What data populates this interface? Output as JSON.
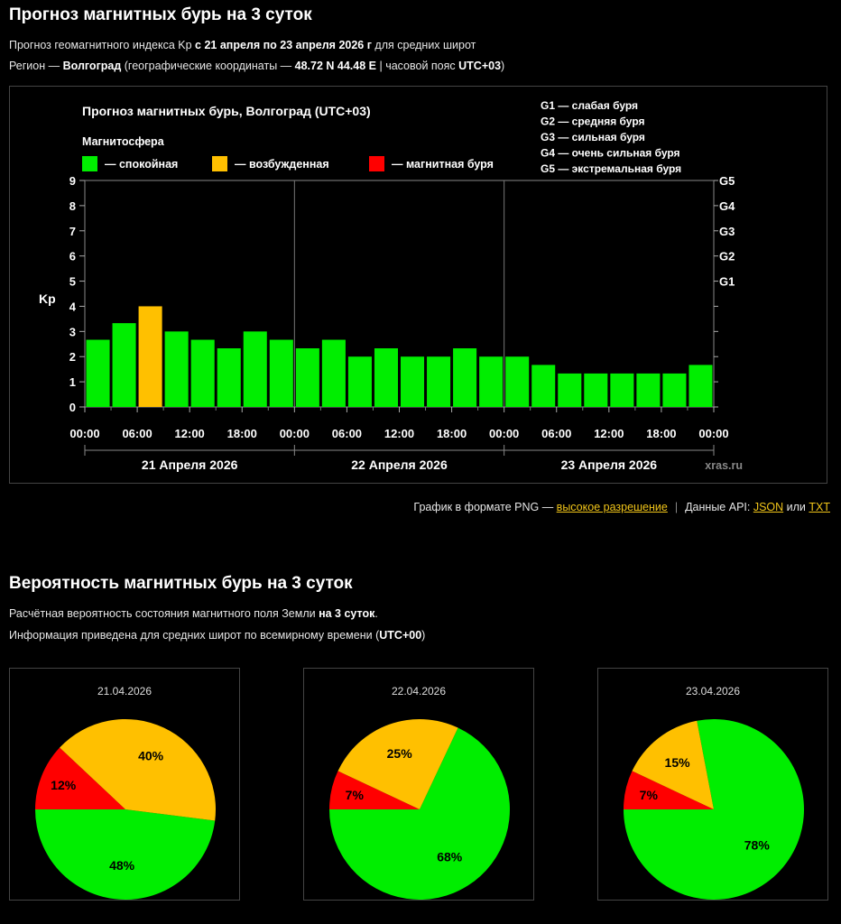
{
  "header": {
    "title": "Прогноз магнитных бурь на 3 суток",
    "line1_pre": "Прогноз геомагнитного индекса Kp ",
    "line1_bold": "с 21 апреля по 23 апреля 2026 г",
    "line1_post": " для средних широт",
    "line2_pre": "Регион — ",
    "line2_region": "Волгоград",
    "line2_mid": " (географические координаты — ",
    "line2_coords": "48.72 N 44.48 E",
    "line2_tz_pre": " | часовой пояс ",
    "line2_tz": "UTC+03",
    "line2_post": ")"
  },
  "chart_data": {
    "type": "bar",
    "title": "Прогноз магнитных бурь, Волгоград (UTC+03)",
    "ylabel": "Kp",
    "ylim": [
      0,
      9
    ],
    "yticks": [
      "0",
      "1",
      "2",
      "3",
      "4",
      "5",
      "6",
      "7",
      "8",
      "9"
    ],
    "right_ticks": [
      {
        "kp": 5,
        "label": "G1"
      },
      {
        "kp": 6,
        "label": "G2"
      },
      {
        "kp": 7,
        "label": "G3"
      },
      {
        "kp": 8,
        "label": "G4"
      },
      {
        "kp": 9,
        "label": "G5"
      }
    ],
    "xtick_labels": [
      "00:00",
      "06:00",
      "12:00",
      "18:00",
      "00:00",
      "06:00",
      "12:00",
      "18:00",
      "00:00",
      "06:00",
      "12:00",
      "18:00",
      "00:00"
    ],
    "days": [
      "21 Апреля 2026",
      "22 Апреля 2026",
      "23 Апреля 2026"
    ],
    "values": [
      2.67,
      3.33,
      4.0,
      3.0,
      2.67,
      2.33,
      3.0,
      2.67,
      2.33,
      2.67,
      2.0,
      2.33,
      2.0,
      2.0,
      2.33,
      2.0,
      2.0,
      1.67,
      1.33,
      1.33,
      1.33,
      1.33,
      1.33,
      1.67
    ],
    "levels": [
      "calm",
      "calm",
      "excited",
      "calm",
      "calm",
      "calm",
      "calm",
      "calm",
      "calm",
      "calm",
      "calm",
      "calm",
      "calm",
      "calm",
      "calm",
      "calm",
      "calm",
      "calm",
      "calm",
      "calm",
      "calm",
      "calm",
      "calm",
      "calm"
    ],
    "legend_title": "Магнитосфера",
    "legend": [
      {
        "key": "calm",
        "label": "— спокойная",
        "color": "#00ee00"
      },
      {
        "key": "excited",
        "label": "— возбужденная",
        "color": "#ffc000"
      },
      {
        "key": "storm",
        "label": "— магнитная буря",
        "color": "#ff0000"
      }
    ],
    "g_legend": [
      "G1 — слабая буря",
      "G2 — средняя буря",
      "G3 — сильная буря",
      "G4 — очень сильная буря",
      "G5 — экстремальная буря"
    ],
    "watermark": "xras.ru"
  },
  "links": {
    "png_text": "График в формате PNG — ",
    "png_link": "высокое разрешение",
    "sep": "|",
    "api_text": "Данные API: ",
    "json_link": "JSON",
    "or_text": " или ",
    "txt_link": "TXT"
  },
  "probability": {
    "title": "Вероятность магнитных бурь на 3 суток",
    "line1_pre": "Расчётная вероятность состояния магнитного поля Земли ",
    "line1_bold": "на 3 суток",
    "line1_post": ".",
    "line2_pre": "Информация приведена для средних широт по всемирному времени (",
    "line2_bold": "UTC+00",
    "line2_post": ")"
  },
  "pies": [
    {
      "date": "21.04.2026",
      "green": 48,
      "yellow": 40,
      "red": 12,
      "green_label": "48%",
      "yellow_label": "40%",
      "red_label": "12%"
    },
    {
      "date": "22.04.2026",
      "green": 68,
      "yellow": 25,
      "red": 7,
      "green_label": "68%",
      "yellow_label": "25%",
      "red_label": "7%"
    },
    {
      "date": "23.04.2026",
      "green": 78,
      "yellow": 15,
      "red": 7,
      "green_label": "78%",
      "yellow_label": "15%",
      "red_label": "7%"
    }
  ],
  "colors": {
    "green": "#00ee00",
    "yellow": "#ffc000",
    "red": "#ff0000"
  }
}
